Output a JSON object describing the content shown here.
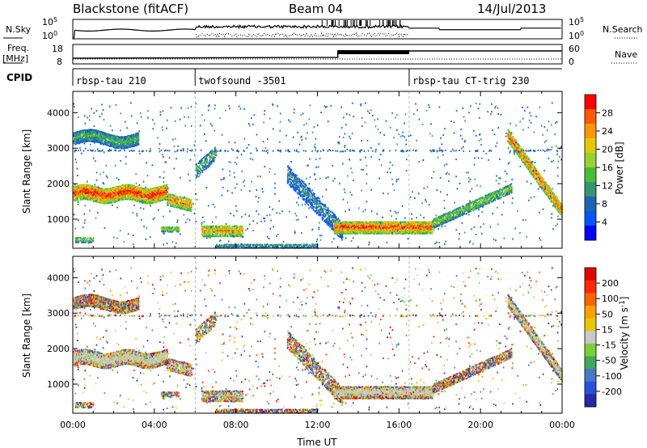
{
  "header": {
    "station": "Blackstone (fitACF)",
    "beam": "Beam 04",
    "date": "14/Jul/2013"
  },
  "noise_panel": {
    "left_label": "N.Sky",
    "left_ticks": [
      "10^5",
      "10^0"
    ],
    "right_label": "N.Search",
    "right_ticks": [
      "10^5",
      "10^0"
    ]
  },
  "freq_panel": {
    "left_label_1": "Freq.",
    "left_label_2": "[MHz]",
    "left_ticks": [
      "18",
      "8"
    ],
    "right_label": "Nave",
    "right_ticks": [
      "60",
      "0"
    ]
  },
  "cpid": {
    "label": "CPID",
    "modes": [
      {
        "name": "rbsp-tau 210",
        "start_h": 0
      },
      {
        "name": "twofsound -3501",
        "start_h": 6
      },
      {
        "name": "rbsp-tau CT-trig 230",
        "start_h": 16.5
      }
    ]
  },
  "chart_data": [
    {
      "type": "heatmap",
      "panel": "power",
      "ylabel": "Slant Range [km]",
      "xlim": [
        0,
        24
      ],
      "ylim": [
        180,
        4600
      ],
      "yticks": [
        "1000",
        "2000",
        "3000",
        "4000"
      ],
      "colorbar": {
        "label": "Power [dB]",
        "ticks": [
          "28",
          "24",
          "20",
          "16",
          "12",
          "8",
          "4"
        ],
        "colors": [
          "#0000ff",
          "#0055ff",
          "#1e64b4",
          "#32966e",
          "#46be32",
          "#96d232",
          "#e6c800",
          "#ff9600",
          "#ff5a00",
          "#ff0000"
        ]
      }
    },
    {
      "type": "heatmap",
      "panel": "velocity",
      "ylabel": "Slant Range [km]",
      "xlabel": "Time UT",
      "xlim": [
        0,
        24
      ],
      "ylim": [
        180,
        4600
      ],
      "yticks": [
        "1000",
        "2000",
        "3000",
        "4000"
      ],
      "xticks": [
        "00:00",
        "04:00",
        "08:00",
        "12:00",
        "16:00",
        "20:00",
        "00:00"
      ],
      "colorbar": {
        "label": "Velocity [m s^-1]",
        "ticks": [
          "200",
          "100",
          "50",
          "15",
          "-15",
          "-50",
          "-100",
          "-200"
        ],
        "colors": [
          "#2828aa",
          "#2850dc",
          "#4678c8",
          "#3caa5a",
          "#78d232",
          "#c8c8c8",
          "#e6c800",
          "#ffa000",
          "#ff6400",
          "#ff2800",
          "#e60000"
        ]
      }
    }
  ]
}
